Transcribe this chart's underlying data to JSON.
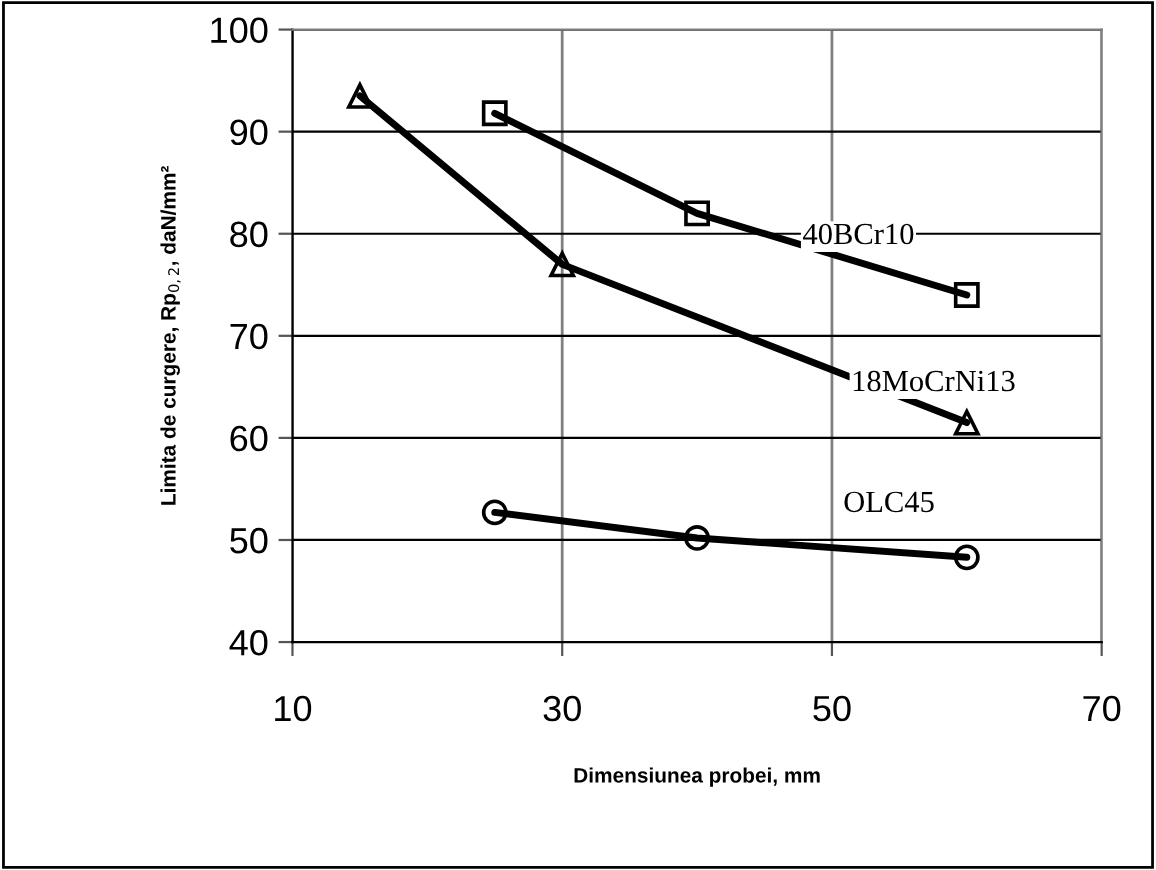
{
  "chart_data": {
    "type": "line",
    "xlabel": "Dimensiunea probei, mm",
    "ylabel": "Limita de curgere, Rp$_{0,2}$, daN/mm²",
    "xlim": [
      10,
      70
    ],
    "xticks": [
      10,
      30,
      50,
      70
    ],
    "ylim": [
      40,
      100
    ],
    "yticks": [
      40,
      50,
      60,
      70,
      80,
      90,
      100
    ],
    "grid": true,
    "legend": false,
    "line_style": "solid",
    "series": [
      {
        "name": "40BCr10",
        "color": "#000000",
        "marker": "square",
        "x": [
          25,
          40,
          60
        ],
        "values": [
          91.8,
          82,
          74
        ]
      },
      {
        "name": "18MoCrNi13",
        "color": "#000000",
        "marker": "triangle",
        "x": [
          15,
          30,
          60
        ],
        "values": [
          93.5,
          77,
          61.5
        ]
      },
      {
        "name": "OLC45",
        "color": "#000000",
        "marker": "circle",
        "x": [
          25,
          40,
          60
        ],
        "values": [
          52.7,
          50.2,
          48.3
        ]
      }
    ]
  }
}
